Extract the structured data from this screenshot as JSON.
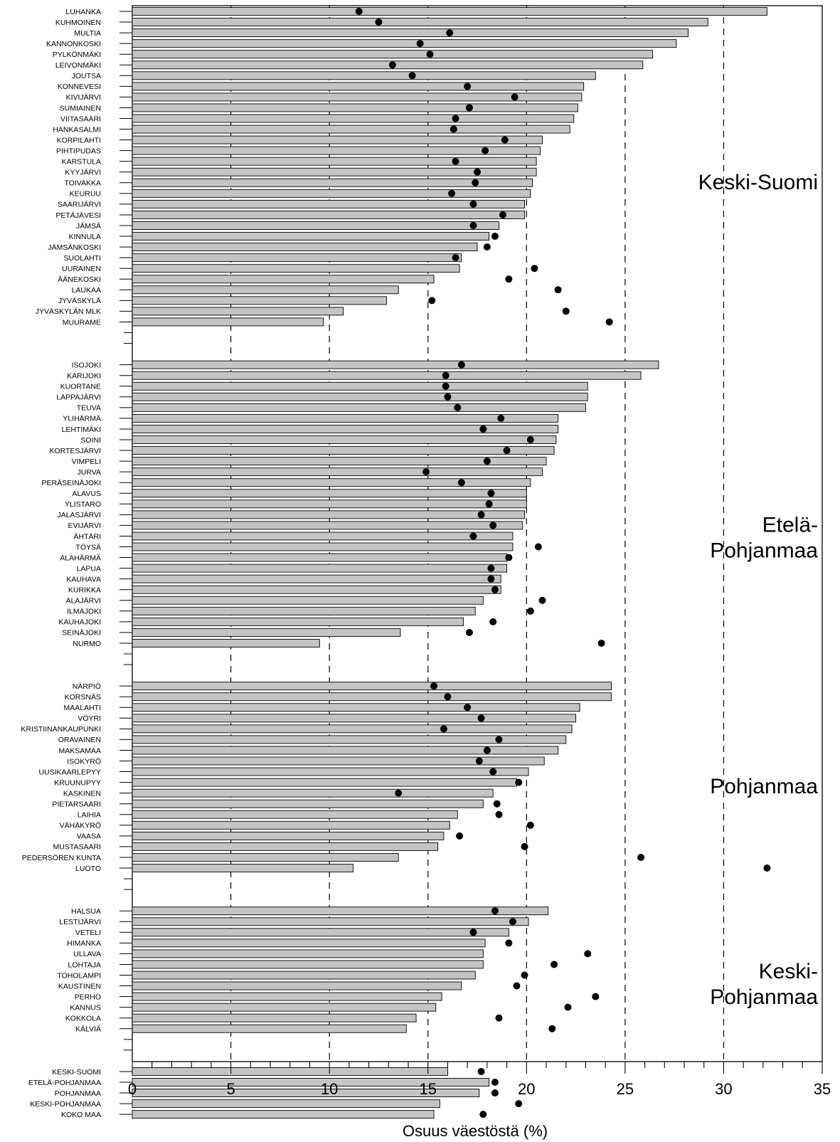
{
  "chart_data": {
    "type": "bar",
    "xlabel": "Osuus väestöstä (%)",
    "xlim": [
      0,
      35
    ],
    "xticks": [
      0,
      5,
      10,
      15,
      20,
      25,
      30,
      35
    ],
    "gridlines_x": [
      5,
      10,
      15,
      20,
      25,
      30
    ],
    "series_styles": {
      "bars": {
        "color": "#c4c4c4",
        "outline": "#000000"
      },
      "dots": {
        "color": "#000000",
        "marker": "circle"
      }
    },
    "groups": [
      {
        "region": [
          "Keski-Suomi"
        ],
        "categories": [
          "LUHANKA",
          "KUHMOINEN",
          "MULTIA",
          "KANNONKOSKI",
          "PYLKÖNMÄKI",
          "LEIVONMÄKI",
          "JOUTSA",
          "KONNEVESI",
          "KIVIJÄRVI",
          "SUMIAINEN",
          "VIITASAARI",
          "HANKASALMI",
          "KORPILAHTI",
          "PIHTIPUDAS",
          "KARSTULA",
          "KYYJÄRVI",
          "TOIVAKKA",
          "KEURUU",
          "SAARIJÄRVI",
          "PETÄJÄVESI",
          "JÄMSÄ",
          "KINNULA",
          "JÄMSÄNKOSKI",
          "SUOLAHTI",
          "UURAINEN",
          "ÄÄNEKOSKI",
          "LAUKAA",
          "JYVÄSKYLÄ",
          "JYVÄSKYLÄN MLK",
          "MUURAME"
        ],
        "bars": [
          32.2,
          29.2,
          28.2,
          27.6,
          26.4,
          25.9,
          23.5,
          22.9,
          22.8,
          22.6,
          22.4,
          22.2,
          20.8,
          20.7,
          20.5,
          20.5,
          20.3,
          20.2,
          19.9,
          19.9,
          18.6,
          18.1,
          17.5,
          16.7,
          16.6,
          15.3,
          13.5,
          12.9,
          10.7,
          9.7
        ],
        "dots": [
          11.5,
          12.5,
          16.1,
          14.6,
          15.1,
          13.2,
          14.2,
          17.0,
          19.4,
          17.1,
          16.4,
          16.3,
          18.9,
          17.9,
          16.4,
          17.5,
          17.4,
          16.2,
          17.3,
          18.8,
          17.3,
          18.4,
          18.0,
          16.4,
          20.4,
          19.1,
          21.6,
          15.2,
          22.0,
          24.2
        ]
      },
      {
        "region": [
          "Etelä-",
          "Pohjanmaa"
        ],
        "categories": [
          "ISOJOKI",
          "KARIJOKI",
          "KUORTANE",
          "LAPPAJÄRVI",
          "TEUVA",
          "YLIHÄRMÄ",
          "LEHTIMÄKI",
          "SOINI",
          "KORTESJÄRVI",
          "VIMPELI",
          "JURVA",
          "PERÄSEINÄJOKI",
          "ALAVUS",
          "YLISTARO",
          "JALASJÄRVI",
          "EVIJÄRVI",
          "ÄHTÄRI",
          "TÖYSÄ",
          "ALAHÄRMÄ",
          "LAPUA",
          "KAUHAVA",
          "KURIKKA",
          "ALAJÄRVI",
          "ILMAJOKI",
          "KAUHAJOKI",
          "SEINÄJOKI",
          "NURMO"
        ],
        "bars": [
          26.7,
          25.8,
          23.1,
          23.1,
          23.0,
          21.6,
          21.6,
          21.5,
          21.4,
          21.0,
          20.8,
          20.2,
          20.0,
          20.0,
          19.9,
          19.8,
          19.3,
          19.3,
          19.0,
          19.0,
          18.7,
          18.7,
          17.8,
          17.4,
          16.8,
          13.6,
          9.5
        ],
        "dots": [
          16.7,
          15.9,
          15.9,
          16.0,
          16.5,
          18.7,
          17.8,
          20.2,
          19.0,
          18.0,
          14.9,
          16.7,
          18.2,
          18.1,
          17.7,
          18.3,
          17.3,
          20.6,
          19.1,
          18.2,
          18.2,
          18.4,
          20.8,
          20.2,
          18.3,
          17.1,
          23.8
        ]
      },
      {
        "region": [
          "Pohjanmaa"
        ],
        "categories": [
          "NÄRPIÖ",
          "KORSNÄS",
          "MAALAHTI",
          "VÖYRI",
          "KRISTIINANKAUPUNKI",
          "ORAVAINEN",
          "MAKSAMAA",
          "ISOKYRÖ",
          "UUSIKAARLEPYY",
          "KRUUNUPYY",
          "KASKINEN",
          "PIETARSAARI",
          "LAIHIA",
          "VÄHÄKYRÖ",
          "VAASA",
          "MUSTASAARI",
          "PEDERSÖREN KUNTA",
          "LUOTO"
        ],
        "bars": [
          24.3,
          24.3,
          22.7,
          22.5,
          22.3,
          22.0,
          21.6,
          20.9,
          20.1,
          19.5,
          18.3,
          17.8,
          16.5,
          16.1,
          15.8,
          15.5,
          13.5,
          11.2
        ],
        "dots": [
          15.3,
          16.0,
          17.0,
          17.7,
          15.8,
          18.6,
          18.0,
          17.6,
          18.3,
          19.6,
          13.5,
          18.5,
          18.6,
          20.2,
          16.6,
          19.9,
          25.8,
          32.2
        ]
      },
      {
        "region": [
          "Keski-",
          "Pohjanmaa"
        ],
        "categories": [
          "HALSUA",
          "LESTIJÄRVI",
          "VETELI",
          "HIMANKA",
          "ULLAVA",
          "LOHTAJA",
          "TOHOLAMPI",
          "KAUSTINEN",
          "PERHO",
          "KANNUS",
          "KOKKOLA",
          "KÄLVIÄ"
        ],
        "bars": [
          21.1,
          20.1,
          19.1,
          17.9,
          17.8,
          17.8,
          17.4,
          16.7,
          15.7,
          15.4,
          14.4,
          13.9
        ],
        "dots": [
          18.4,
          19.3,
          17.3,
          19.1,
          23.1,
          21.4,
          19.9,
          19.5,
          23.5,
          22.1,
          18.6,
          21.3
        ]
      },
      {
        "region": [],
        "categories": [
          "KESKI-SUOMI",
          "ETELÄ-POHJANMAA",
          "POHJANMAA",
          "KESKI-POHJANMAA",
          "KOKO MAA"
        ],
        "bars": [
          16.0,
          18.1,
          17.6,
          15.6,
          15.3
        ],
        "dots": [
          17.7,
          18.4,
          18.4,
          19.6,
          17.8
        ]
      }
    ]
  }
}
